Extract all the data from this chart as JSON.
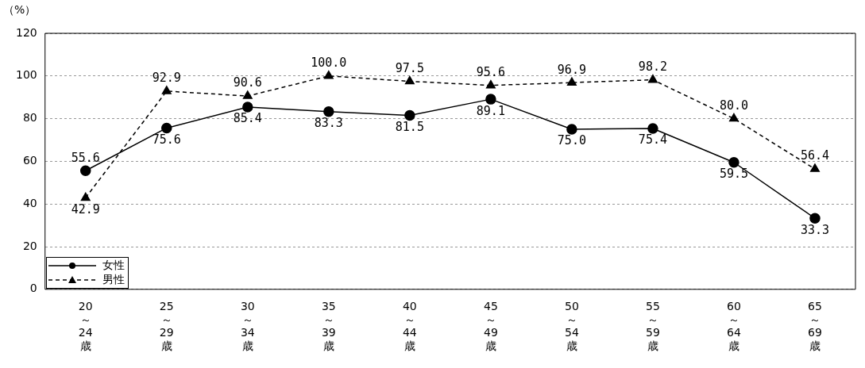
{
  "chart_data": {
    "type": "line",
    "ylabel": "（%）",
    "categories": [
      "20\n～\n24\n歳",
      "25\n～\n29\n歳",
      "30\n～\n34\n歳",
      "35\n～\n39\n歳",
      "40\n～\n44\n歳",
      "45\n～\n49\n歳",
      "50\n～\n54\n歳",
      "55\n～\n59\n歳",
      "60\n～\n64\n歳",
      "65\n～\n69\n歳"
    ],
    "series": [
      {
        "name": "女性",
        "color": "#000000",
        "marker": "circle",
        "line_style": "solid",
        "values": [
          55.6,
          75.6,
          85.4,
          83.3,
          81.5,
          89.1,
          75.0,
          75.4,
          59.5,
          33.3
        ],
        "value_labels": [
          "55.6",
          "75.6",
          "85.4",
          "83.3",
          "81.5",
          "89.1",
          "75.0",
          "75.4",
          "59.5",
          "33.3"
        ]
      },
      {
        "name": "男性",
        "color": "#000000",
        "marker": "triangle",
        "line_style": "dashed",
        "values": [
          42.9,
          92.9,
          90.6,
          100.0,
          97.5,
          95.6,
          96.9,
          98.2,
          80.0,
          56.4
        ],
        "value_labels": [
          "42.9",
          "92.9",
          "90.6",
          "100.0",
          "97.5",
          "95.6",
          "96.9",
          "98.2",
          "80.0",
          "56.4"
        ]
      }
    ],
    "ylim": [
      0,
      120
    ],
    "yticks": [
      0,
      20,
      40,
      60,
      80,
      100,
      120
    ],
    "grid": "y",
    "legend": "bottom left"
  }
}
